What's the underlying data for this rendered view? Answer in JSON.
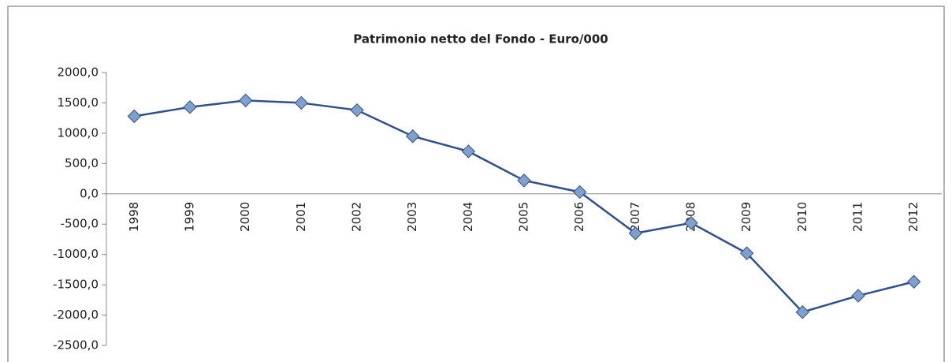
{
  "chart_data": {
    "type": "line",
    "title": "Patrimonio netto del Fondo - Euro/000",
    "categories": [
      "1998",
      "1999",
      "2000",
      "2001",
      "2002",
      "2003",
      "2004",
      "2005",
      "2006",
      "2007",
      "2008",
      "2009",
      "2010",
      "2011",
      "2012"
    ],
    "series": [
      {
        "name": "Patrimonio netto",
        "color": "#2f4f8f",
        "values": [
          1280,
          1430,
          1540,
          1500,
          1380,
          950,
          700,
          220,
          30,
          -650,
          -480,
          -980,
          -1950,
          -1680,
          -1450
        ]
      }
    ],
    "ylim": [
      -2500,
      2000
    ],
    "yticks": [
      {
        "value": -2500,
        "label": "-2500,0"
      },
      {
        "value": -2000,
        "label": "-2000,0"
      },
      {
        "value": -1500,
        "label": "-1500,0"
      },
      {
        "value": -1000,
        "label": "-1000,0"
      },
      {
        "value": -500,
        "label": "-500,0"
      },
      {
        "value": 0,
        "label": "0,0"
      },
      {
        "value": 500,
        "label": "500,0"
      },
      {
        "value": 1000,
        "label": "1000,0"
      },
      {
        "value": 1500,
        "label": "1500,0"
      },
      {
        "value": 2000,
        "label": "2000,0"
      }
    ],
    "grid": false
  }
}
